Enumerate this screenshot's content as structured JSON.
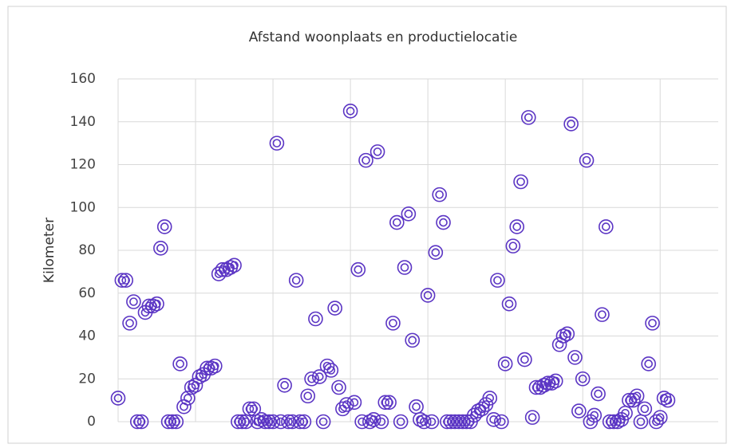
{
  "chart_data": {
    "type": "scatter",
    "title": "Afstand woonplaats en productielocatie",
    "y_label": "Kilometer",
    "color": "#5b35c4",
    "grid": true,
    "xlim": [
      0,
      155
    ],
    "xticks": [
      0,
      20,
      40,
      60,
      80,
      100,
      120,
      140
    ],
    "ylim": [
      0,
      160
    ],
    "yticks": [
      0,
      20,
      40,
      60,
      80,
      100,
      120,
      140,
      160
    ],
    "x": [
      0,
      1,
      2,
      3,
      4,
      5,
      6,
      7,
      8,
      9,
      10,
      11,
      12,
      13,
      14,
      15,
      16,
      17,
      18,
      19,
      20,
      21,
      22,
      23,
      24,
      25,
      26,
      27,
      28,
      29,
      30,
      31,
      32,
      33,
      34,
      35,
      36,
      37,
      38,
      39,
      40,
      41,
      42,
      43,
      44,
      45,
      46,
      47,
      48,
      49,
      50,
      51,
      52,
      53,
      54,
      55,
      56,
      57,
      58,
      59,
      60,
      61,
      62,
      63,
      64,
      65,
      66,
      67,
      68,
      69,
      70,
      71,
      72,
      73,
      74,
      75,
      76,
      77,
      78,
      79,
      80,
      81,
      82,
      83,
      84,
      85,
      86,
      87,
      88,
      89,
      90,
      91,
      92,
      93,
      94,
      95,
      96,
      97,
      98,
      99,
      100,
      101,
      102,
      103,
      104,
      105,
      106,
      107,
      108,
      109,
      110,
      111,
      112,
      113,
      114,
      115,
      116,
      117,
      118,
      119,
      120,
      121,
      122,
      123,
      124,
      125,
      126,
      127,
      128,
      129,
      130,
      131,
      132,
      133,
      134,
      135,
      136,
      137,
      138,
      139,
      140,
      141,
      142
    ],
    "values": [
      11,
      66,
      66,
      46,
      56,
      0,
      0,
      51,
      54,
      54,
      55,
      81,
      91,
      0,
      0,
      0,
      27,
      7,
      11,
      16,
      17,
      21,
      22,
      25,
      25,
      26,
      69,
      71,
      71,
      72,
      73,
      0,
      0,
      0,
      6,
      6,
      0,
      1,
      0,
      0,
      0,
      130,
      0,
      17,
      0,
      0,
      66,
      0,
      0,
      12,
      20,
      48,
      21,
      0,
      26,
      24,
      53,
      16,
      6,
      8,
      145,
      9,
      71,
      0,
      122,
      0,
      1,
      126,
      0,
      9,
      9,
      46,
      93,
      0,
      72,
      97,
      38,
      7,
      1,
      0,
      59,
      0,
      79,
      106,
      93,
      0,
      0,
      0,
      0,
      0,
      0,
      0,
      3,
      5,
      6,
      8,
      11,
      1,
      66,
      0,
      27,
      55,
      82,
      91,
      112,
      29,
      142,
      2,
      16,
      16,
      17,
      18,
      18,
      19,
      36,
      40,
      41,
      139,
      30,
      5,
      20,
      122,
      0,
      3,
      13,
      50,
      91,
      0,
      0,
      0,
      1,
      4,
      10,
      10,
      12,
      0,
      6,
      27,
      46,
      0,
      2,
      11,
      10
    ]
  }
}
